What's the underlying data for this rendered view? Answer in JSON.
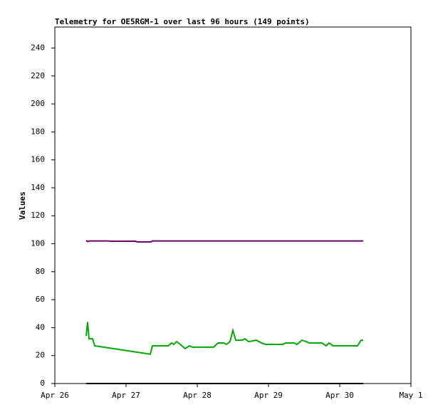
{
  "chart_data": {
    "type": "line",
    "title": "Telemetry for OE5RGM-1 over last 96 hours (149 points)",
    "ylabel": "Values",
    "xlim": [
      0,
      5
    ],
    "xticks": [
      {
        "value": 0,
        "label": "Apr 26"
      },
      {
        "value": 1,
        "label": "Apr 27"
      },
      {
        "value": 2,
        "label": "Apr 28"
      },
      {
        "value": 3,
        "label": "Apr 29"
      },
      {
        "value": 4,
        "label": "Apr 30"
      },
      {
        "value": 5,
        "label": "May 1"
      }
    ],
    "ylim": [
      0,
      255
    ],
    "yticks": [
      0,
      20,
      40,
      60,
      80,
      100,
      120,
      140,
      160,
      180,
      200,
      220,
      240
    ],
    "series": [
      {
        "color": "#6a006a",
        "x": [
          0.44,
          0.46,
          0.48,
          0.75,
          0.78,
          1.13,
          1.16,
          1.35,
          1.37,
          4.33
        ],
        "values": [
          102.4,
          101.5,
          102,
          102,
          101.8,
          101.8,
          101.3,
          101.3,
          102,
          102
        ]
      },
      {
        "color": "#00aa00",
        "x": [
          0.44,
          0.46,
          0.48,
          0.53,
          0.56,
          1.34,
          1.37,
          1.59,
          1.64,
          1.67,
          1.71,
          1.76,
          1.83,
          1.89,
          1.93,
          2.23,
          2.29,
          2.37,
          2.41,
          2.46,
          2.5,
          2.54,
          2.63,
          2.67,
          2.72,
          2.83,
          2.9,
          2.96,
          3.2,
          3.24,
          3.36,
          3.4,
          3.47,
          3.53,
          3.57,
          3.75,
          3.81,
          3.85,
          3.91,
          4.25,
          4.3,
          4.33
        ],
        "values": [
          34,
          44,
          32,
          32,
          27,
          21,
          27,
          27,
          29,
          28,
          30,
          28,
          25,
          27,
          26,
          26,
          29,
          29,
          28,
          30,
          38,
          31,
          31,
          32,
          30,
          31,
          29,
          28,
          28,
          29,
          29,
          28,
          31,
          30,
          29,
          29,
          27,
          29,
          27,
          27,
          31,
          31
        ]
      },
      {
        "color": "#000000",
        "x": [
          0.44,
          4.33
        ],
        "values": [
          0,
          0
        ]
      }
    ]
  }
}
